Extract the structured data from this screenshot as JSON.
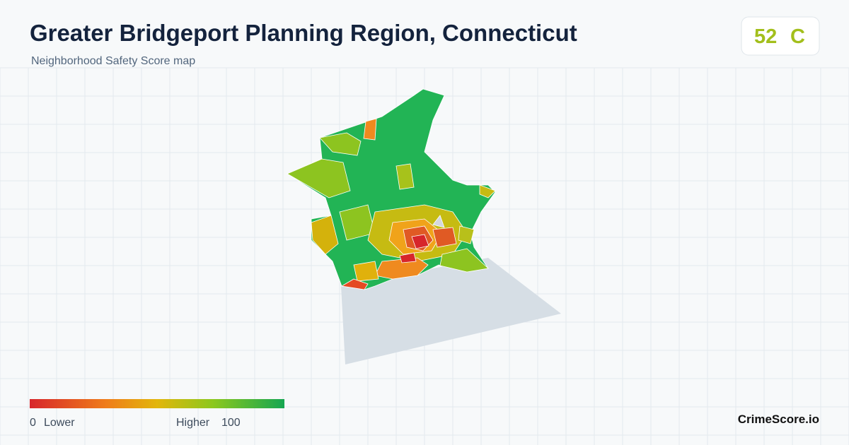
{
  "header": {
    "title": "Greater Bridgeport Planning Region, Connecticut",
    "subtitle": "Neighborhood Safety Score map"
  },
  "score": {
    "value": "52",
    "grade": "C"
  },
  "legend": {
    "min": "0",
    "min_label": "Lower",
    "max_label": "Higher",
    "max": "100"
  },
  "brand": "CrimeScore.io"
}
